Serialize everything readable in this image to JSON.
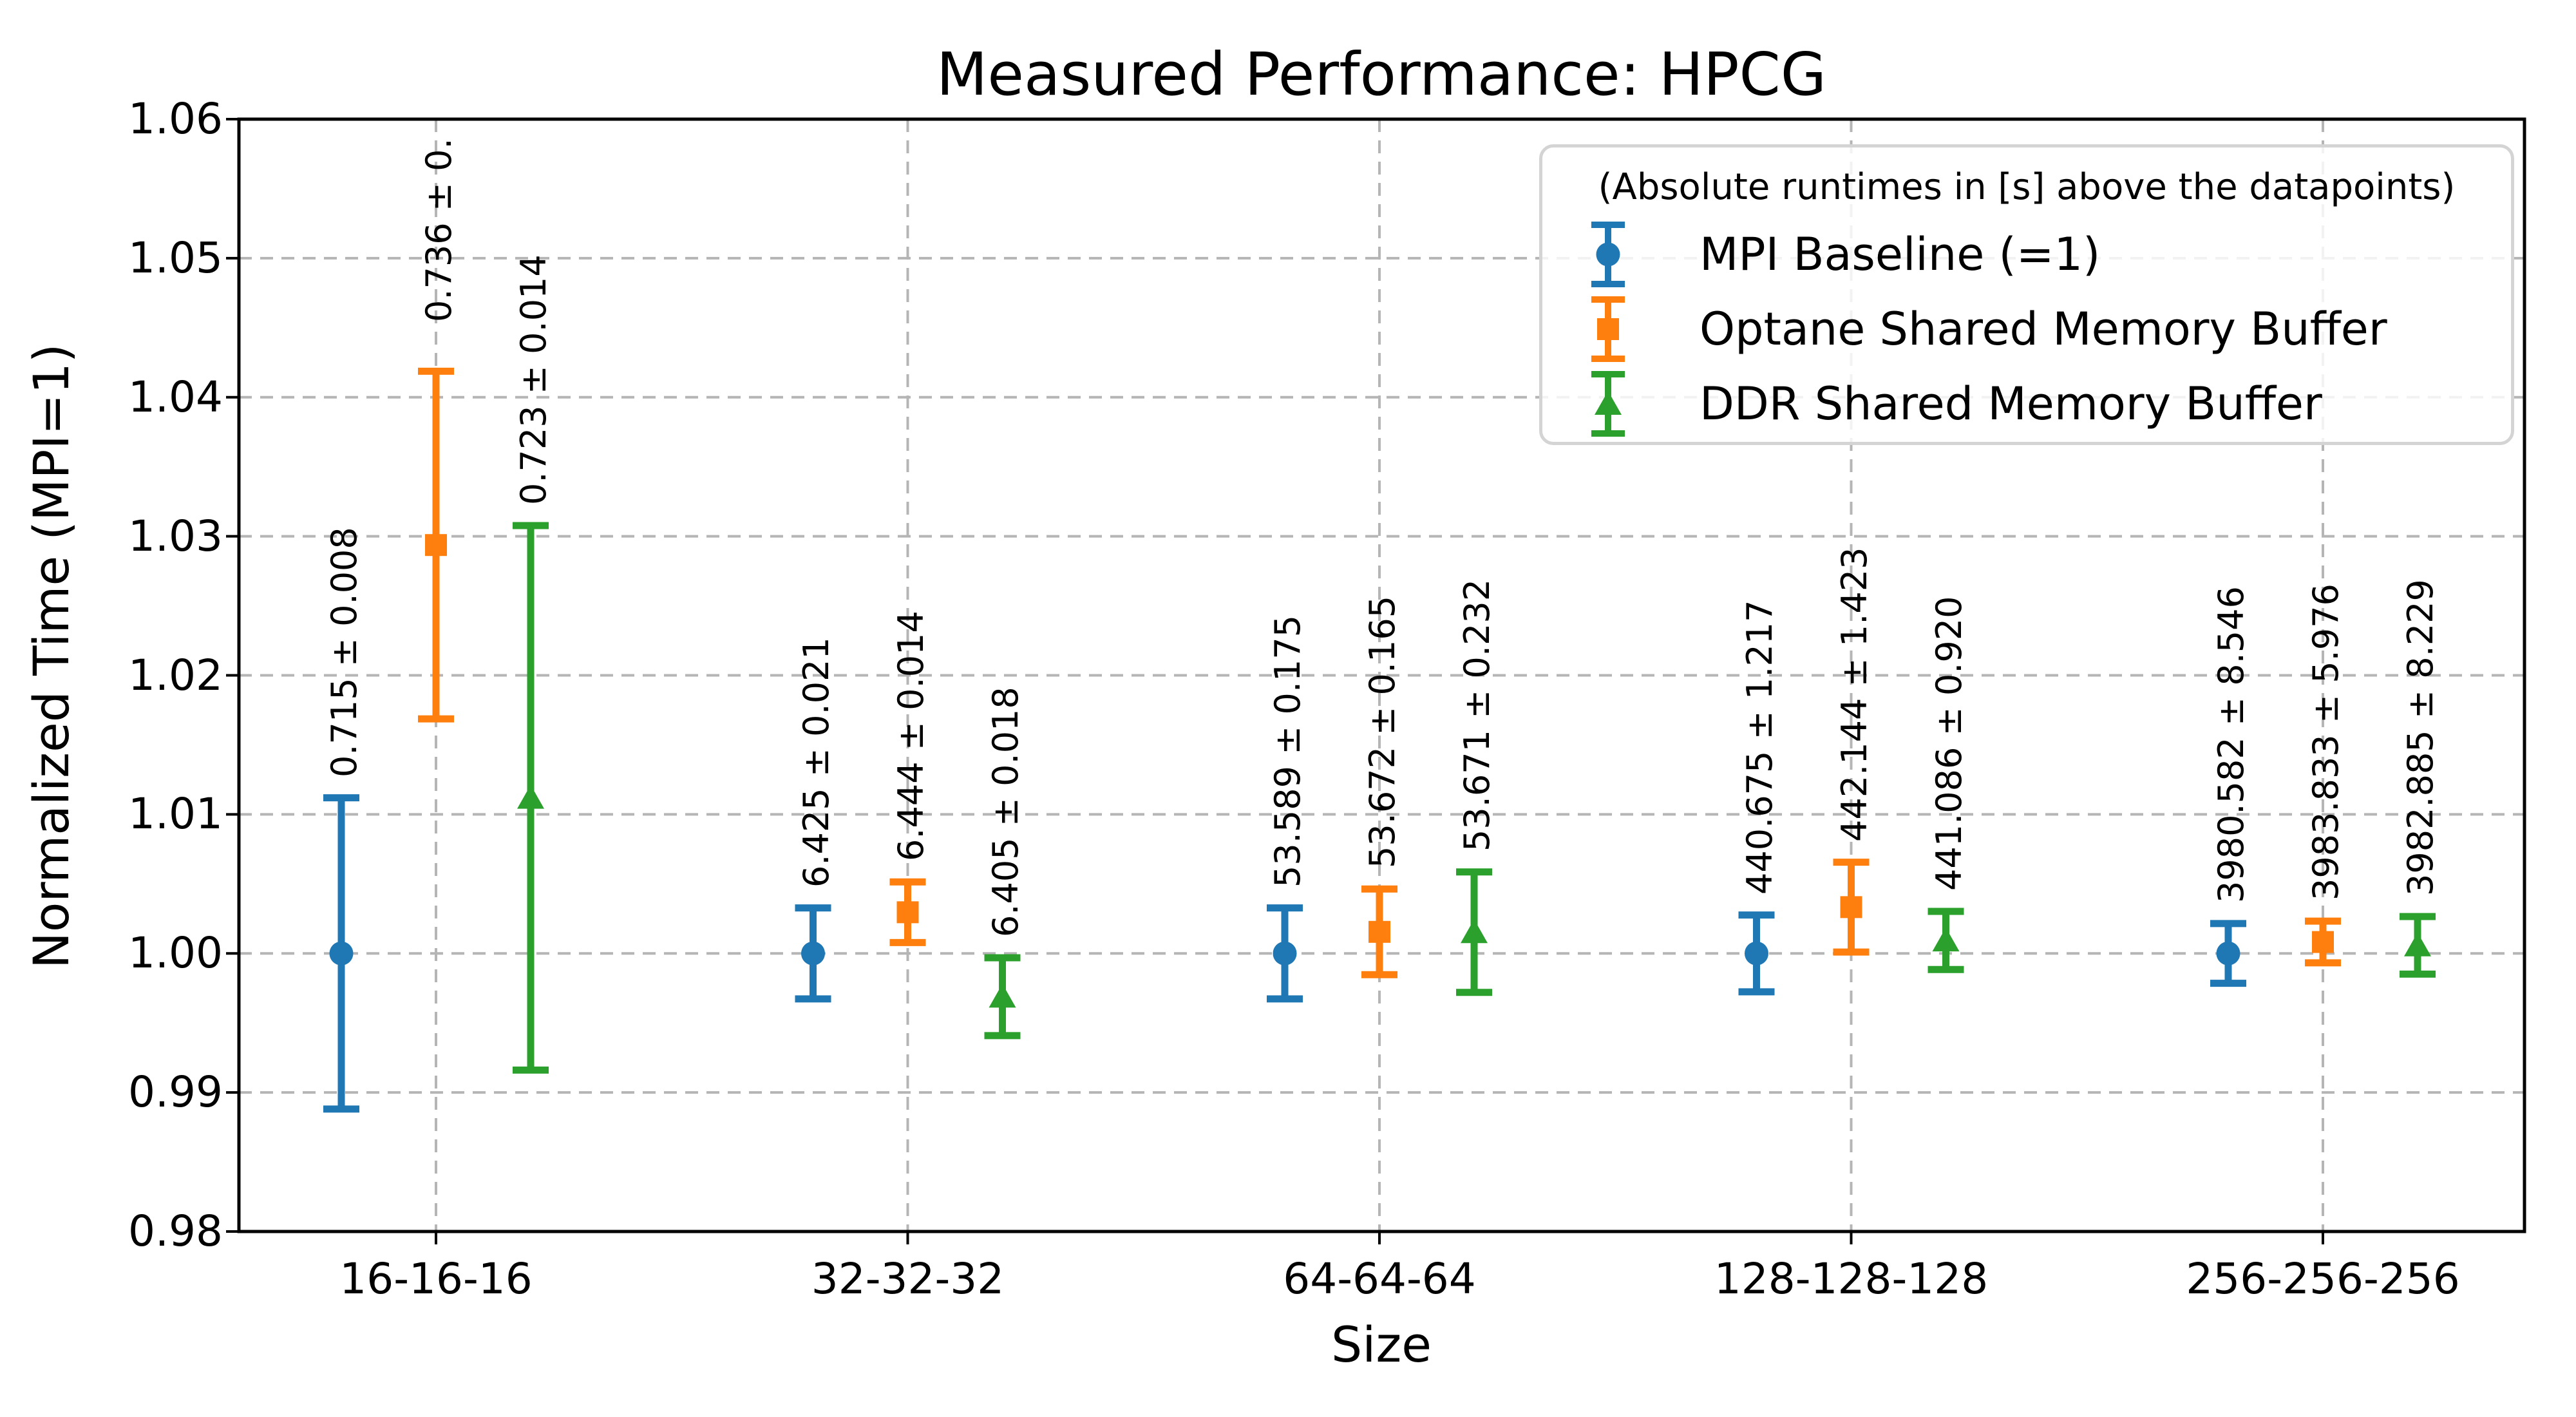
{
  "figure": {
    "title": "Measured Performance: HPCG"
  },
  "axes": {
    "x_label": "Size",
    "y_label": "Normalized Time (MPI=1)",
    "x_tick_labels": [
      "16-16-16",
      "32-32-32",
      "64-64-64",
      "128-128-128",
      "256-256-256"
    ],
    "y_tick_labels": [
      "0.98",
      "0.99",
      "1.00",
      "1.01",
      "1.02",
      "1.03",
      "1.04",
      "1.05",
      "1.06"
    ]
  },
  "legend": {
    "title": "(Absolute runtimes in [s] above the datapoints)",
    "entries": [
      {
        "label": "MPI Baseline (=1)",
        "color": "#1f77b4",
        "marker": "circle"
      },
      {
        "label": "Optane Shared Memory Buffer",
        "color": "#ff7f0e",
        "marker": "square"
      },
      {
        "label": "DDR Shared Memory Buffer",
        "color": "#2ca02c",
        "marker": "triangle"
      }
    ]
  },
  "colors": {
    "grid": "#b5b5b5",
    "spine": "#000000",
    "background": "#ffffff"
  },
  "chart_data": {
    "type": "scatter",
    "subtype": "errorbar",
    "title": "Measured Performance: HPCG",
    "xlabel": "Size",
    "ylabel": "Normalized Time (MPI=1)",
    "categories": [
      "16-16-16",
      "32-32-32",
      "64-64-64",
      "128-128-128",
      "256-256-256"
    ],
    "ylim": [
      0.98,
      1.06
    ],
    "y_ticks": [
      0.98,
      0.99,
      1.0,
      1.01,
      1.02,
      1.03,
      1.04,
      1.05,
      1.06
    ],
    "grid": true,
    "legend_position": "upper right",
    "annotation_note": "(Absolute runtimes in [s] above the datapoints)",
    "series": [
      {
        "name": "MPI Baseline (=1)",
        "color": "#1f77b4",
        "marker": "circle",
        "normalized_values": [
          1.0,
          1.0,
          1.0,
          1.0,
          1.0
        ],
        "normalized_errors": [
          0.01119,
          0.00327,
          0.00327,
          0.00276,
          0.00215
        ],
        "runtime_labels": [
          "0.715 ± 0.008",
          "6.425 ± 0.021",
          "53.589 ± 0.175",
          "440.675 ± 1.217",
          "3980.582 ± 8.546"
        ]
      },
      {
        "name": "Optane Shared Memory Buffer",
        "color": "#ff7f0e",
        "marker": "square",
        "normalized_values": [
          1.02937,
          1.00296,
          1.00155,
          1.00333,
          1.00082
        ],
        "normalized_errors": [
          0.0125,
          0.00218,
          0.00308,
          0.00323,
          0.0015
        ],
        "runtime_labels": [
          "0.736 ± 0.",
          "6.444 ± 0.014",
          "53.672 ± 0.165",
          "442.144 ± 1.423",
          "3983.833 ± 5.976"
        ]
      },
      {
        "name": "DDR Shared Memory Buffer",
        "color": "#2ca02c",
        "marker": "triangle",
        "normalized_values": [
          1.01119,
          0.99689,
          1.00153,
          1.00093,
          1.00058
        ],
        "normalized_errors": [
          0.01958,
          0.0028,
          0.00433,
          0.00209,
          0.00207
        ],
        "runtime_labels": [
          "0.723 ± 0.014",
          "6.405 ± 0.018",
          "53.671 ± 0.232",
          "441.086 ± 0.920",
          "3982.885 ± 8.229"
        ]
      }
    ]
  }
}
